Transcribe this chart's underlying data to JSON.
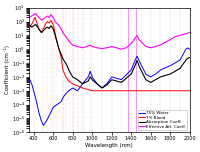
{
  "xlabel": "Wavelength (nm)",
  "ylabel": "Coefficient (cm⁻¹)",
  "xlim": [
    350,
    2000
  ],
  "ylim": [
    1e-06,
    1000.0
  ],
  "legend": [
    "75% Water",
    "7% Blood",
    "Absorption Coeff.",
    "Effective Att. Coeff."
  ],
  "line_colors": [
    "blue",
    "red",
    "black",
    "magenta"
  ],
  "vlines_pink": [
    540,
    575,
    630,
    700,
    730,
    760,
    800,
    850,
    915,
    975
  ],
  "vlines_gray": [
    400,
    500,
    600,
    700,
    800,
    900,
    1000,
    1100,
    1200,
    1300,
    1400,
    1500,
    1600,
    1700,
    1800,
    1900,
    2000
  ],
  "vlines_magenta_solid": [
    1370,
    1450
  ]
}
